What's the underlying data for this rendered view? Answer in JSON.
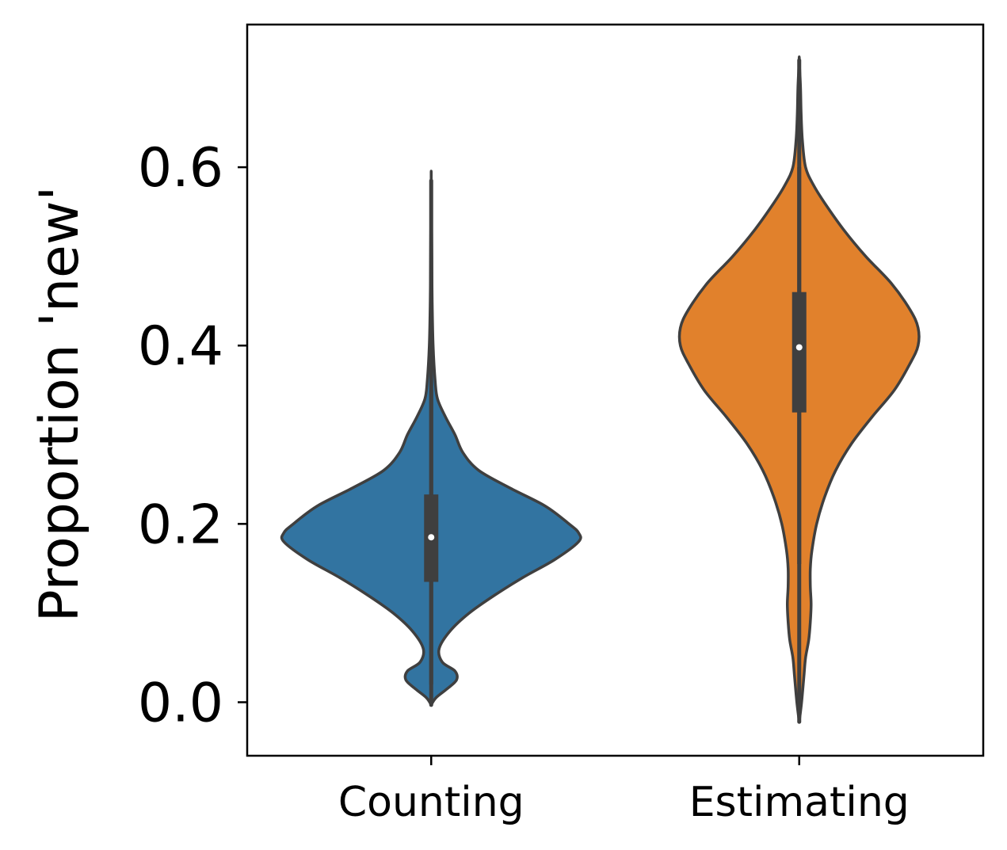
{
  "chart_data": {
    "type": "violin",
    "title": "",
    "xlabel": "",
    "ylabel": "Proportion 'new'",
    "categories": [
      "Counting",
      "Estimating"
    ],
    "ylim": [
      -0.06,
      0.76
    ],
    "yticks": [
      0.0,
      0.2,
      0.4,
      0.6
    ],
    "ytick_labels": [
      "0.0",
      "0.2",
      "0.4",
      "0.6"
    ],
    "grid": false,
    "legend": "none",
    "series": [
      {
        "category": "Counting",
        "color": "#3274a1",
        "range": [
          -0.003,
          0.585
        ],
        "whisker": [
          0.02,
          0.35
        ],
        "quartiles": [
          0.135,
          0.233
        ],
        "median": 0.185,
        "density": [
          [
            -0.003,
            0.0
          ],
          [
            0.005,
            0.03
          ],
          [
            0.015,
            0.1
          ],
          [
            0.025,
            0.16
          ],
          [
            0.035,
            0.15
          ],
          [
            0.045,
            0.07
          ],
          [
            0.06,
            0.05
          ],
          [
            0.08,
            0.12
          ],
          [
            0.1,
            0.24
          ],
          [
            0.12,
            0.4
          ],
          [
            0.14,
            0.58
          ],
          [
            0.16,
            0.78
          ],
          [
            0.18,
            0.93
          ],
          [
            0.19,
            0.93
          ],
          [
            0.2,
            0.87
          ],
          [
            0.22,
            0.72
          ],
          [
            0.24,
            0.5
          ],
          [
            0.26,
            0.3
          ],
          [
            0.28,
            0.2
          ],
          [
            0.3,
            0.15
          ],
          [
            0.32,
            0.09
          ],
          [
            0.34,
            0.04
          ],
          [
            0.36,
            0.025
          ],
          [
            0.4,
            0.012
          ],
          [
            0.45,
            0.006
          ],
          [
            0.5,
            0.004
          ],
          [
            0.585,
            0.0
          ]
        ]
      },
      {
        "category": "Estimating",
        "color": "#e1812c",
        "range": [
          -0.022,
          0.72
        ],
        "whisker": [
          0.155,
          0.6
        ],
        "quartiles": [
          0.325,
          0.46
        ],
        "median": 0.398,
        "density": [
          [
            -0.022,
            0.0
          ],
          [
            0.0,
            0.015
          ],
          [
            0.03,
            0.03
          ],
          [
            0.05,
            0.04
          ],
          [
            0.07,
            0.06
          ],
          [
            0.09,
            0.07
          ],
          [
            0.11,
            0.075
          ],
          [
            0.13,
            0.07
          ],
          [
            0.15,
            0.07
          ],
          [
            0.17,
            0.08
          ],
          [
            0.2,
            0.11
          ],
          [
            0.23,
            0.16
          ],
          [
            0.26,
            0.23
          ],
          [
            0.29,
            0.33
          ],
          [
            0.32,
            0.46
          ],
          [
            0.35,
            0.6
          ],
          [
            0.38,
            0.7
          ],
          [
            0.4,
            0.75
          ],
          [
            0.42,
            0.75
          ],
          [
            0.44,
            0.7
          ],
          [
            0.47,
            0.58
          ],
          [
            0.5,
            0.42
          ],
          [
            0.53,
            0.28
          ],
          [
            0.56,
            0.16
          ],
          [
            0.58,
            0.09
          ],
          [
            0.6,
            0.04
          ],
          [
            0.63,
            0.02
          ],
          [
            0.66,
            0.012
          ],
          [
            0.69,
            0.008
          ],
          [
            0.72,
            0.0
          ]
        ]
      }
    ]
  }
}
